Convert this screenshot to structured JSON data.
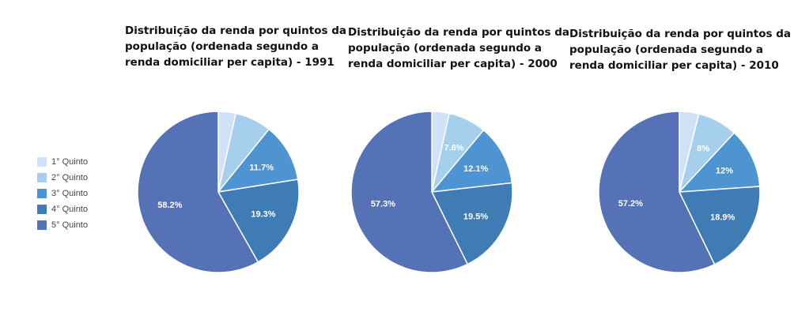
{
  "legend": {
    "items": [
      {
        "label": "1° Quinto",
        "color": "#cfe2f8"
      },
      {
        "label": "2° Quinto",
        "color": "#a6cfee"
      },
      {
        "label": "3° Quinto",
        "color": "#4e93d2"
      },
      {
        "label": "4° Quinto",
        "color": "#3f7cb5"
      },
      {
        "label": "5° Quinto",
        "color": "#5572b6"
      }
    ]
  },
  "chart_data": [
    {
      "type": "pie",
      "title": "Distribuição da renda por quintos da\npopulação (ordenada segundo a\nrenda domiciliar per capita)  - 1991",
      "categories": [
        "1° Quinto",
        "2° Quinto",
        "3° Quinto",
        "4° Quinto",
        "5° Quinto"
      ],
      "values": [
        3.5,
        7.3,
        11.7,
        19.3,
        58.2
      ],
      "labels": [
        "",
        "",
        "11.7%",
        "19.3%",
        "58.2%"
      ]
    },
    {
      "type": "pie",
      "title": "Distribuição da renda por quintos da\npopulação (ordenada segundo a\nrenda domiciliar per capita)  - 2000",
      "categories": [
        "1° Quinto",
        "2° Quinto",
        "3° Quinto",
        "4° Quinto",
        "5° Quinto"
      ],
      "values": [
        3.5,
        7.6,
        12.1,
        19.5,
        57.3
      ],
      "labels": [
        "",
        "7.6%",
        "12.1%",
        "19.5%",
        "57.3%"
      ]
    },
    {
      "type": "pie",
      "title": "Distribuição da renda por quintos da\npopulação (ordenada segundo a\nrenda domiciliar per capita)  - 2010",
      "categories": [
        "1° Quinto",
        "2° Quinto",
        "3° Quinto",
        "4° Quinto",
        "5° Quinto"
      ],
      "values": [
        3.9,
        8,
        12,
        18.9,
        57.2
      ],
      "labels": [
        "",
        "8%",
        "12%",
        "18.9%",
        "57.2%"
      ]
    }
  ]
}
